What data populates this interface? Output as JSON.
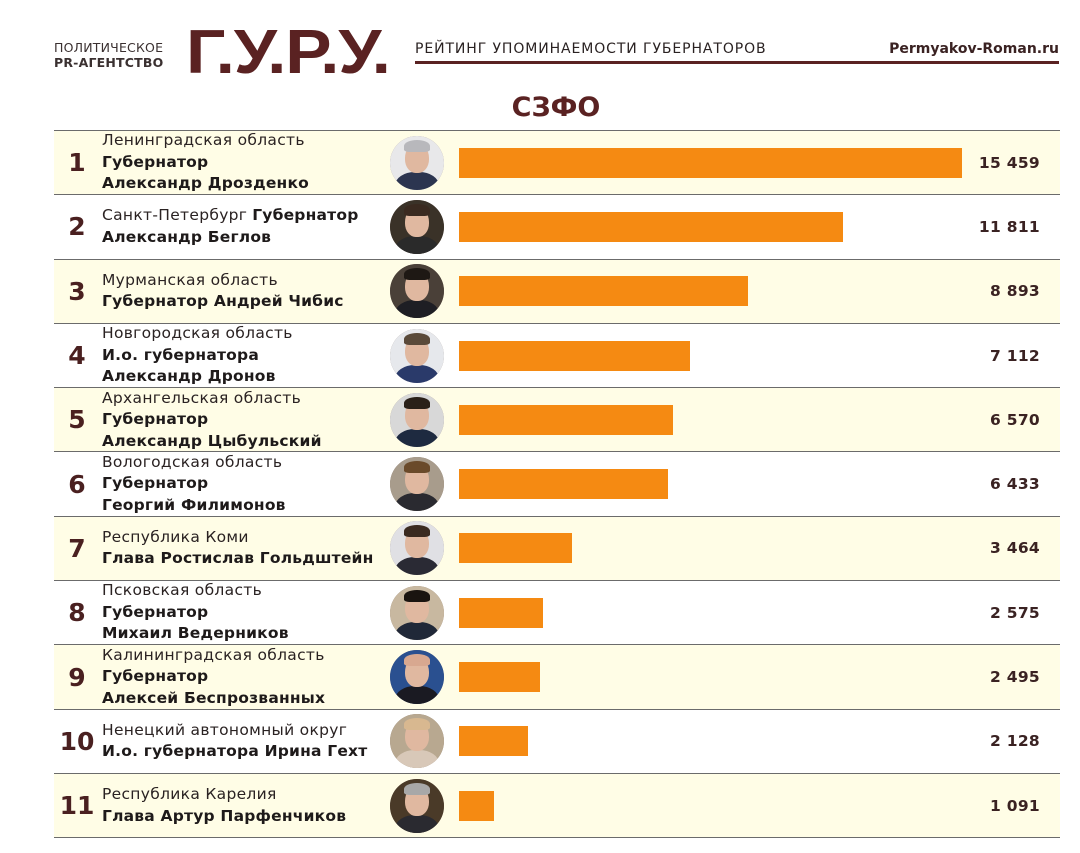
{
  "header": {
    "agency_line1": "ПОЛИТИЧЕСКОЕ",
    "agency_line2": "PR-АГЕНТСТВО",
    "logo": "Г.У.Р.У.",
    "tagline": "РЕЙТИНГ УПОМИНАЕМОСТИ ГУБЕРНАТОРОВ",
    "site": "Permyakov-Roman.ru"
  },
  "region_title": "СЗФО",
  "colors": {
    "brand": "#5a2222",
    "bar": "#f58a12",
    "row_odd": "#fffde6",
    "row_even": "#ffffff"
  },
  "rows": [
    {
      "rank": "1",
      "region": "Ленинградская область",
      "title": "Губернатор",
      "name": "Александр Дрозденко",
      "value": "15 459",
      "inline_title": false,
      "avatar": "avatar-drozdenko"
    },
    {
      "rank": "2",
      "region": "Санкт-Петербург",
      "title": "Губернатор",
      "name": "Александр Беглов",
      "value": "11 811",
      "inline_title": true,
      "avatar": "avatar-beglov"
    },
    {
      "rank": "3",
      "region": "Мурманская область",
      "title": "Губернатор Андрей Чибис",
      "name": "",
      "value": "8 893",
      "inline_title": false,
      "avatar": "avatar-chibis"
    },
    {
      "rank": "4",
      "region": "Новгородская область",
      "title": "И.о. губернатора",
      "name": "Александр Дронов",
      "value": "7 112",
      "inline_title": false,
      "avatar": "avatar-dronov"
    },
    {
      "rank": "5",
      "region": "Архангельская область",
      "title": "Губернатор",
      "name": "Александр Цыбульский",
      "value": "6 570",
      "inline_title": false,
      "avatar": "avatar-tsybulsky"
    },
    {
      "rank": "6",
      "region": "Вологодская область",
      "title": "Губернатор",
      "name": "Георгий Филимонов",
      "value": "6 433",
      "inline_title": false,
      "avatar": "avatar-filimonov"
    },
    {
      "rank": "7",
      "region": "Республика Коми",
      "title": "Глава Ростислав Гольдштейн",
      "name": "",
      "value": "3 464",
      "inline_title": false,
      "avatar": "avatar-goldshtein"
    },
    {
      "rank": "8",
      "region": "Псковская область",
      "title": "Губернатор",
      "name": "Михаил Ведерников",
      "value": "2 575",
      "inline_title": false,
      "avatar": "avatar-vedernikov"
    },
    {
      "rank": "9",
      "region": "Калининградская область",
      "title": "Губернатор",
      "name": "Алексей Беспрозванных",
      "value": "2 495",
      "inline_title": false,
      "avatar": "avatar-besprozvannykh"
    },
    {
      "rank": "10",
      "region": "Ненецкий автономный округ",
      "title": "И.о. губернатора Ирина Гехт",
      "name": "",
      "value": "2 128",
      "inline_title": false,
      "avatar": "avatar-gekht"
    },
    {
      "rank": "11",
      "region": "Республика Карелия",
      "title": "Глава Артур Парфенчиков",
      "name": "",
      "value": "1 091",
      "inline_title": false,
      "avatar": "avatar-parfenchikov"
    }
  ],
  "chart_data": {
    "type": "bar",
    "orientation": "horizontal",
    "title": "СЗФО",
    "subtitle": "РЕЙТИНГ УПОМИНАЕМОСТИ ГУБЕРНАТОРОВ",
    "xlabel": "",
    "ylabel": "",
    "grid": false,
    "legend": null,
    "categories": [
      "Ленинградская область — Александр Дрозденко",
      "Санкт-Петербург — Александр Беглов",
      "Мурманская область — Андрей Чибис",
      "Новгородская область — Александр Дронов",
      "Архангельская область — Александр Цыбульский",
      "Вологодская область — Георгий Филимонов",
      "Республика Коми — Ростислав Гольдштейн",
      "Псковская область — Михаил Ведерников",
      "Калининградская область — Алексей Беспрозванных",
      "Ненецкий автономный округ — Ирина Гехт",
      "Республика Карелия — Артур Парфенчиков"
    ],
    "values": [
      15459,
      11811,
      8893,
      7112,
      6570,
      6433,
      3464,
      2575,
      2495,
      2128,
      1091
    ],
    "xlim": [
      0,
      15459
    ]
  }
}
